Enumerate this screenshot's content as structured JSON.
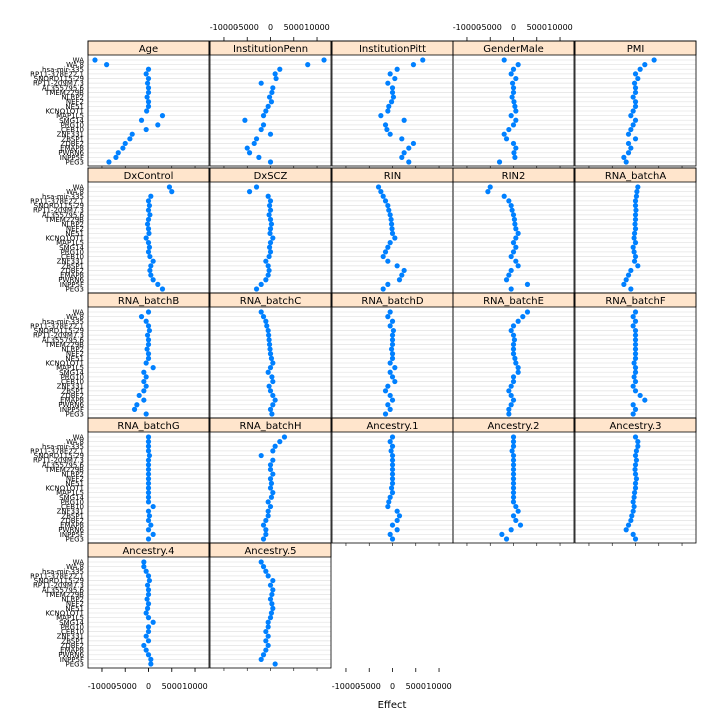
{
  "chart_data": {
    "type": "dotplot-trellis",
    "xlabel": "Effect",
    "xlim": [
      -13000,
      13000
    ],
    "x_ticks": [
      -10000,
      -5000,
      0,
      5000,
      10000
    ],
    "x_tick_labels": [
      "-10000",
      "-5000",
      "0",
      "5000",
      "10000"
    ],
    "grid": true,
    "strip_color": "#ffe5cc",
    "point_color": "#0080ff",
    "genes": [
      "WA",
      "WA.8",
      "hsa-mir-335",
      "RP11-378E22.1",
      "SNORD115-29",
      "RP11-209M7.3",
      "AL355795.6",
      "TMEM229B",
      "NLRP2",
      "NEF2",
      "NE51",
      "KCNQ1OT1",
      "MAP1L5",
      "SMG14",
      "PRG10",
      "CEB10",
      "ZNF331",
      "ZBSP1",
      "ZDBF2",
      "EMAP8",
      "PWRN6",
      "INPP5F",
      "PEG3"
    ],
    "gene_labels_text": [
      "WA",
      "WA.8",
      "hsa-mir-335",
      "RP11-378E22.1",
      "SNORD115-29",
      "RP11-209M7.3",
      "AL355795.6",
      "TMEM229B",
      "NLRP2",
      "NEF2",
      "NE51",
      "KCNQ1OT1",
      "MAP1L5",
      "SMG14",
      "PRG10",
      "CEB10",
      "ZNF331",
      "ZBSP1",
      "ZDBF2",
      "EMAP8",
      "PWRN6",
      "INPP5F",
      "PEG3"
    ],
    "panels": [
      {
        "name": "Age",
        "values": [
          -11500,
          -9000,
          0,
          -500,
          0,
          -200,
          0,
          0,
          -300,
          0,
          0,
          -400,
          3000,
          -1500,
          2000,
          -500,
          -3500,
          -4000,
          -5000,
          -5500,
          -6500,
          -7000,
          -8500
        ]
      },
      {
        "name": "InstitutionPenn",
        "values": [
          11500,
          8000,
          2000,
          1000,
          1200,
          -2000,
          500,
          300,
          -200,
          200,
          -500,
          -1000,
          -1500,
          -5500,
          -1500,
          -2000,
          0,
          -3000,
          -3500,
          -5000,
          -4500,
          -2500,
          0
        ]
      },
      {
        "name": "InstitutionPitt",
        "values": [
          6500,
          4500,
          1000,
          -500,
          500,
          -1000,
          0,
          0,
          200,
          -200,
          -800,
          -1000,
          -2500,
          2500,
          -1500,
          -1200,
          -500,
          2000,
          4500,
          3500,
          2500,
          2000,
          3500
        ]
      },
      {
        "name": "GenderMale",
        "values": [
          -2000,
          1000,
          0,
          -500,
          500,
          -200,
          0,
          0,
          -300,
          100,
          300,
          500,
          -500,
          500,
          0,
          -1000,
          -2000,
          -1500,
          0,
          500,
          100,
          300,
          -3000
        ]
      },
      {
        "name": "PMI",
        "values": [
          4000,
          2000,
          1000,
          0,
          500,
          -200,
          0,
          0,
          -500,
          0,
          0,
          -500,
          -1000,
          0,
          -500,
          -1000,
          -1500,
          0,
          -1500,
          -1000,
          -1500,
          -2500,
          -2000
        ]
      },
      {
        "name": "DxControl",
        "values": [
          4500,
          5000,
          500,
          0,
          200,
          0,
          300,
          0,
          -200,
          0,
          100,
          -500,
          0,
          200,
          0,
          300,
          1000,
          500,
          300,
          500,
          1000,
          2000,
          3000
        ]
      },
      {
        "name": "DxSCZ",
        "values": [
          -3000,
          -4500,
          -500,
          0,
          -200,
          0,
          -300,
          0,
          200,
          0,
          -100,
          500,
          0,
          -200,
          0,
          -300,
          -1000,
          -500,
          -300,
          -500,
          -1000,
          -2000,
          -3000
        ]
      },
      {
        "name": "RIN",
        "values": [
          -3000,
          -2500,
          -2000,
          -1500,
          -1000,
          -800,
          -500,
          -300,
          -200,
          -100,
          0,
          500,
          -500,
          -1000,
          -1500,
          -2000,
          -1000,
          1000,
          2500,
          2000,
          1500,
          -1000,
          -2000
        ]
      },
      {
        "name": "RIN2",
        "values": [
          -5000,
          -5500,
          -2000,
          -1000,
          -500,
          -300,
          0,
          200,
          300,
          500,
          1000,
          500,
          0,
          500,
          0,
          -500,
          500,
          1000,
          -500,
          -1000,
          -1500,
          3000,
          -500
        ]
      },
      {
        "name": "RNA_batchA",
        "values": [
          500,
          300,
          200,
          0,
          0,
          100,
          0,
          0,
          -100,
          0,
          -200,
          -300,
          0,
          -500,
          -300,
          0,
          -200,
          500,
          -1000,
          -1500,
          -2000,
          -2500,
          -1000
        ]
      },
      {
        "name": "RNA_batchB",
        "values": [
          0,
          -1500,
          -500,
          0,
          200,
          -200,
          0,
          0,
          -300,
          0,
          0,
          -500,
          1000,
          -1000,
          -500,
          -1000,
          -500,
          -1000,
          -2000,
          -1000,
          -2500,
          -3000,
          -500
        ]
      },
      {
        "name": "RNA_batchC",
        "values": [
          -2000,
          -1500,
          -1000,
          -800,
          -500,
          -400,
          -300,
          -200,
          -100,
          0,
          200,
          500,
          0,
          -500,
          300,
          500,
          -300,
          0,
          500,
          1000,
          500,
          0,
          300
        ]
      },
      {
        "name": "RNA_batchD",
        "values": [
          -500,
          -1000,
          0,
          -500,
          200,
          0,
          0,
          0,
          -200,
          0,
          0,
          -500,
          500,
          -500,
          0,
          500,
          -1000,
          -1500,
          -500,
          0,
          -1000,
          -500,
          -1500
        ]
      },
      {
        "name": "RNA_batchE",
        "values": [
          3000,
          2000,
          1000,
          0,
          -500,
          0,
          200,
          0,
          0,
          0,
          300,
          500,
          1000,
          1000,
          0,
          0,
          -500,
          -1000,
          -500,
          0,
          -500,
          -1000,
          -1000
        ]
      },
      {
        "name": "RNA_batchF",
        "values": [
          0,
          -500,
          0,
          -500,
          0,
          0,
          0,
          0,
          0,
          0,
          0,
          -300,
          0,
          0,
          -300,
          0,
          -500,
          0,
          1000,
          2000,
          -500,
          0,
          -500
        ]
      },
      {
        "name": "RNA_batchG",
        "values": [
          0,
          0,
          0,
          0,
          200,
          0,
          0,
          0,
          0,
          0,
          0,
          0,
          0,
          0,
          0,
          1000,
          0,
          200,
          0,
          500,
          0,
          1000,
          0
        ]
      },
      {
        "name": "RNA_batchH",
        "values": [
          3000,
          2000,
          1000,
          500,
          -2000,
          500,
          0,
          0,
          500,
          0,
          200,
          0,
          500,
          200,
          -500,
          0,
          -500,
          -500,
          -1000,
          -1500,
          -1000,
          -1000,
          -1500
        ]
      },
      {
        "name": "Ancestry.1",
        "values": [
          0,
          -500,
          0,
          -300,
          0,
          0,
          0,
          0,
          0,
          0,
          0,
          -200,
          0,
          -500,
          -800,
          -1000,
          1000,
          1500,
          1000,
          0,
          1000,
          -500,
          0
        ]
      },
      {
        "name": "Ancestry.2",
        "values": [
          0,
          0,
          0,
          -300,
          0,
          0,
          0,
          0,
          0,
          0,
          0,
          0,
          0,
          0,
          0,
          500,
          1000,
          0,
          500,
          1500,
          -500,
          -2500,
          -1500
        ]
      },
      {
        "name": "Ancestry.3",
        "values": [
          0,
          500,
          500,
          200,
          0,
          200,
          0,
          -100,
          0,
          200,
          0,
          0,
          -200,
          -300,
          -500,
          -300,
          -500,
          -800,
          -1000,
          -1500,
          -2000,
          -500,
          0
        ]
      },
      {
        "name": "Ancestry.4",
        "values": [
          -1000,
          -1000,
          -500,
          0,
          200,
          -200,
          0,
          0,
          -300,
          0,
          -200,
          -500,
          0,
          1000,
          0,
          0,
          -500,
          0,
          -1000,
          -500,
          0,
          500,
          500
        ]
      },
      {
        "name": "Ancestry.5",
        "values": [
          -2000,
          -1500,
          -1000,
          -500,
          500,
          0,
          500,
          300,
          0,
          300,
          500,
          200,
          0,
          -500,
          -500,
          -1000,
          -500,
          -1000,
          -500,
          -1000,
          -1500,
          -2000,
          1000
        ]
      }
    ]
  }
}
